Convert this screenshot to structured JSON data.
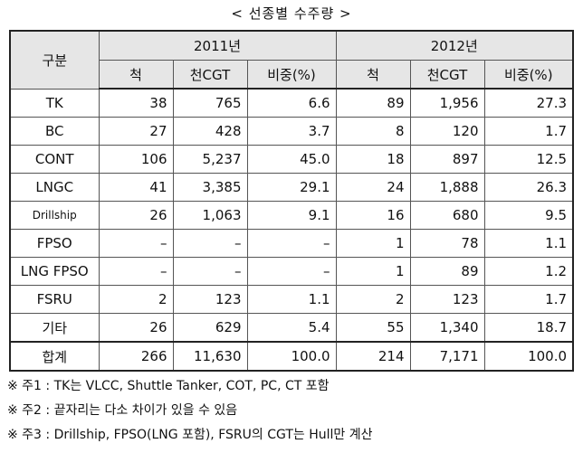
{
  "title": "< 선종별 수주량 >",
  "header": {
    "group": "구분",
    "years": [
      "2011년",
      "2012년"
    ],
    "columns": [
      "척",
      "천CGT",
      "비중(%)",
      "척",
      "천CGT",
      "비중(%)"
    ]
  },
  "rows": [
    {
      "label": "TK",
      "cells": [
        "38",
        "765",
        "6.6",
        "89",
        "1,956",
        "27.3"
      ]
    },
    {
      "label": "BC",
      "cells": [
        "27",
        "428",
        "3.7",
        "8",
        "120",
        "1.7"
      ]
    },
    {
      "label": "CONT",
      "cells": [
        "106",
        "5,237",
        "45.0",
        "18",
        "897",
        "12.5"
      ]
    },
    {
      "label": "LNGC",
      "cells": [
        "41",
        "3,385",
        "29.1",
        "24",
        "1,888",
        "26.3"
      ]
    },
    {
      "label": "Drillship",
      "cells": [
        "26",
        "1,063",
        "9.1",
        "16",
        "680",
        "9.5"
      ]
    },
    {
      "label": "FPSO",
      "cells": [
        "–",
        "–",
        "–",
        "1",
        "78",
        "1.1"
      ]
    },
    {
      "label": "LNG FPSO",
      "cells": [
        "–",
        "–",
        "–",
        "1",
        "89",
        "1.2"
      ]
    },
    {
      "label": "FSRU",
      "cells": [
        "2",
        "123",
        "1.1",
        "2",
        "123",
        "1.7"
      ]
    },
    {
      "label": "기타",
      "cells": [
        "26",
        "629",
        "5.4",
        "55",
        "1,340",
        "18.7"
      ]
    }
  ],
  "total": {
    "label": "합계",
    "cells": [
      "266",
      "11,630",
      "100.0",
      "214",
      "7,171",
      "100.0"
    ]
  },
  "notes": [
    "※  주1 : TK는 VLCC, Shuttle Tanker, COT, PC, CT 포함",
    "※  주2 : 끝자리는 다소 차이가 있을 수 있음",
    "※  주3 : Drillship, FPSO(LNG 포함), FSRU의 CGT는 Hull만 계산"
  ]
}
